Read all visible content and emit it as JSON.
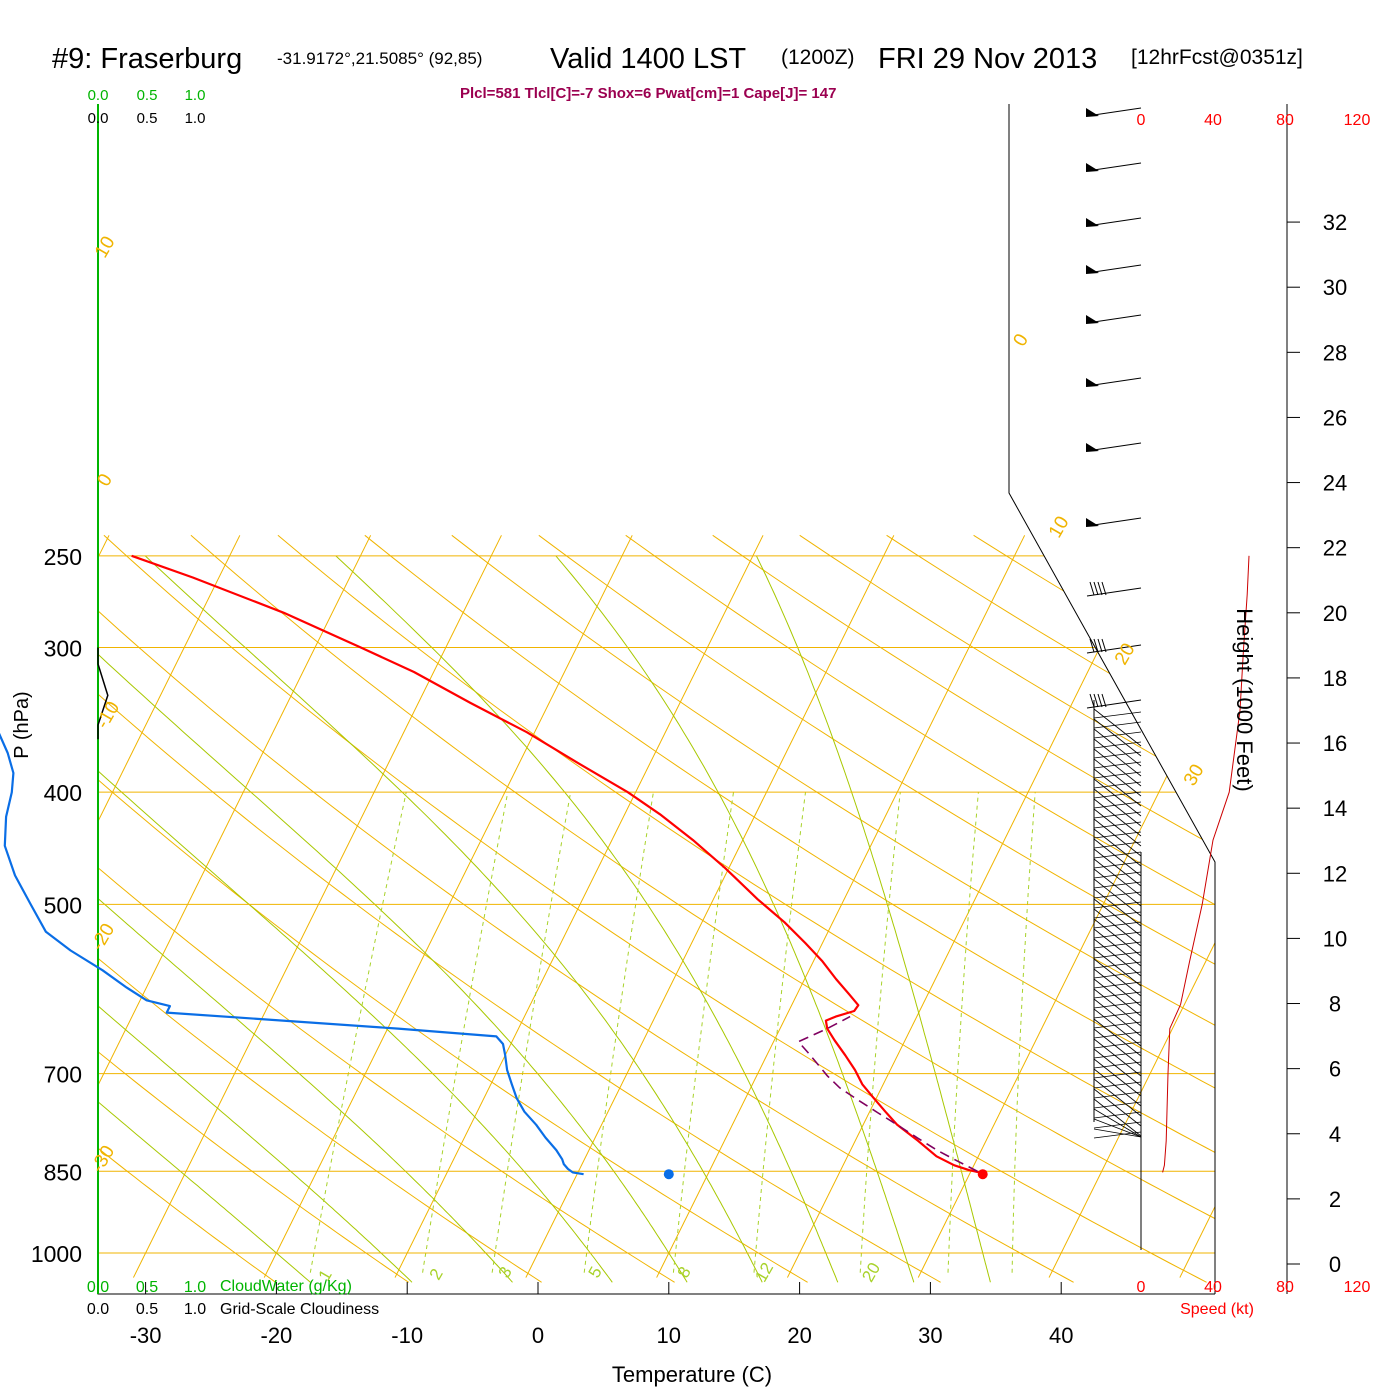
{
  "header": {
    "station": "#9: Fraserburg",
    "coords": "-31.9172°,21.5085° (92,85)",
    "valid": "Valid 1400 LST",
    "utc": "(1200Z)",
    "date": "FRI 29 Nov 2013",
    "fcst": "[12hrFcst@0351z]",
    "indices": "Plcl=581 Tlcl[C]=-7 Shox=6 Pwat[cm]=1 Cape[J]= 147"
  },
  "colors": {
    "temperature": "#ff0000",
    "dewpoint": "#0a6ee6",
    "parcel": "#800060",
    "isotherm": "#f0b400",
    "dry_adiabat": "#a8c800",
    "mixing_ratio": "#a8d22a",
    "cloud_water": "#00b400",
    "wind_speed": "#cc0000",
    "indices": "#9b0050"
  },
  "chart_data": {
    "type": "line",
    "xlabel": "Temperature (C)",
    "ylabel": "P (hPa)",
    "x_ticks": [
      -30,
      -20,
      -10,
      0,
      10,
      20,
      30,
      40
    ],
    "p_labels": [
      250,
      300,
      400,
      500,
      700,
      850,
      1000
    ],
    "pressure_lines": [
      250,
      300,
      400,
      500,
      700,
      850,
      1000
    ],
    "isotherm_labels": [
      "-10",
      "0",
      "10",
      "20",
      "30",
      "-20",
      "-30",
      "0",
      "10",
      "20",
      "30"
    ],
    "mixing_ratio_labels": [
      "1",
      "2",
      "3",
      "5",
      "8",
      "12",
      "20"
    ],
    "series": [
      {
        "name": "Temperature",
        "points": [
          [
            30.7,
            852
          ],
          [
            29.8,
            848
          ],
          [
            28.5,
            840
          ],
          [
            26.8,
            825
          ],
          [
            24.8,
            800
          ],
          [
            22.6,
            775
          ],
          [
            21.2,
            755
          ],
          [
            19.8,
            735
          ],
          [
            18.4,
            715
          ],
          [
            17.3,
            695
          ],
          [
            16.0,
            675
          ],
          [
            14.6,
            655
          ],
          [
            13.6,
            640
          ],
          [
            13.2,
            630
          ],
          [
            13.8,
            625
          ],
          [
            15.0,
            618
          ],
          [
            15.1,
            611
          ],
          [
            14.0,
            598
          ],
          [
            12.4,
            580
          ],
          [
            10.7,
            560
          ],
          [
            8.7,
            540
          ],
          [
            6.3,
            518
          ],
          [
            3.4,
            495
          ],
          [
            -0.3,
            465
          ],
          [
            -3.8,
            440
          ],
          [
            -7.3,
            418
          ],
          [
            -10.6,
            400
          ],
          [
            -15.4,
            378
          ],
          [
            -20.6,
            355
          ],
          [
            -26.0,
            335
          ],
          [
            -31.5,
            315
          ],
          [
            -36.5,
            300
          ],
          [
            -43.7,
            280
          ],
          [
            -52.0,
            261
          ],
          [
            -57.5,
            250
          ]
        ]
      },
      {
        "name": "Dewpoint",
        "points": [
          [
            0.5,
            855
          ],
          [
            -0.4,
            852
          ],
          [
            -0.9,
            846
          ],
          [
            -1.4,
            838
          ],
          [
            -1.7,
            830
          ],
          [
            -2.5,
            815
          ],
          [
            -3.8,
            795
          ],
          [
            -5.0,
            775
          ],
          [
            -6.4,
            755
          ],
          [
            -7.5,
            735
          ],
          [
            -8.4,
            715
          ],
          [
            -9.3,
            695
          ],
          [
            -10.0,
            675
          ],
          [
            -10.6,
            660
          ],
          [
            -11.4,
            650
          ],
          [
            -19.2,
            640
          ],
          [
            -37.5,
            620
          ],
          [
            -37.5,
            612
          ],
          [
            -39.5,
            605
          ],
          [
            -41.5,
            590
          ],
          [
            -44.0,
            570
          ],
          [
            -47.2,
            548
          ],
          [
            -49.8,
            528
          ],
          [
            -52.0,
            500
          ],
          [
            -54.3,
            472
          ],
          [
            -56.2,
            445
          ],
          [
            -57.2,
            420
          ],
          [
            -57.7,
            400
          ],
          [
            -58.3,
            385
          ],
          [
            -59.5,
            370
          ],
          [
            -61.5,
            350
          ],
          [
            -64.5,
            330
          ],
          [
            -66.8,
            315
          ],
          [
            -70.5,
            300
          ],
          [
            -74.5,
            285
          ],
          [
            -79.5,
            270
          ],
          [
            -85.0,
            250
          ]
        ]
      },
      {
        "name": "Parcel",
        "points": [
          [
            30.5,
            850
          ],
          [
            28.7,
            834
          ],
          [
            26.7,
            816
          ],
          [
            24.7,
            796
          ],
          [
            22.6,
            775
          ],
          [
            20.7,
            757
          ],
          [
            18.7,
            738
          ],
          [
            16.8,
            720
          ],
          [
            15.4,
            703
          ],
          [
            14.3,
            688
          ],
          [
            13.1,
            672
          ],
          [
            11.9,
            657
          ],
          [
            13.6,
            640
          ],
          [
            14.9,
            625
          ]
        ]
      }
    ],
    "surface_temperature_point": [
      34.0,
      855
    ],
    "surface_dewpoint_point": [
      10.0,
      855
    ],
    "cloud_axis": {
      "cloud_water_label": "CloudWater (g/Kg)",
      "cloudiness_label": "Grid-Scale Cloudiness",
      "green_ticks": [
        "0.0",
        "0.5",
        "1.0"
      ],
      "black_ticks": [
        "0.0",
        "0.5",
        "1.0"
      ],
      "bottom_green_ticks": [
        "0.0",
        "0.5",
        "1.0"
      ],
      "bottom_black_ticks": [
        "0.0",
        "0.5",
        "1.0"
      ],
      "cloudiness_profile": [
        [
          0.0,
          300
        ],
        [
          0.0,
          310
        ],
        [
          0.08,
          330
        ],
        [
          0.0,
          350
        ],
        [
          0.0,
          360
        ]
      ]
    },
    "wind_speed": {
      "label": "Speed (kt)",
      "ticks": [
        0,
        40,
        80,
        120
      ],
      "profile": [
        [
          12,
          852
        ],
        [
          13,
          840
        ],
        [
          14,
          800
        ],
        [
          15,
          700
        ],
        [
          16,
          640
        ],
        [
          22,
          610
        ],
        [
          27,
          560
        ],
        [
          34,
          500
        ],
        [
          40,
          440
        ],
        [
          49,
          400
        ],
        [
          55,
          340
        ],
        [
          57,
          300
        ],
        [
          59,
          270
        ],
        [
          60,
          250
        ]
      ]
    },
    "height_axis": {
      "label": "Height (1000 Feet)",
      "ticks": [
        0,
        2,
        4,
        6,
        8,
        10,
        12,
        14,
        16,
        18,
        20,
        22,
        24,
        26,
        28,
        30,
        32
      ]
    }
  }
}
